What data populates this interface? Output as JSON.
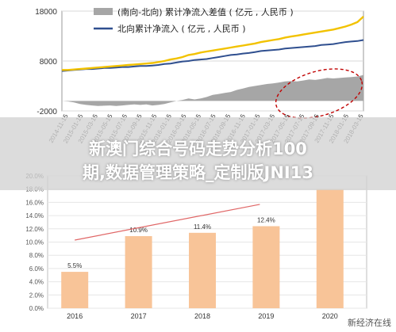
{
  "overlay": {
    "line1": "新澳门综合号码走势分析100",
    "line2": "期,数据管理策略_定制版JNI13"
  },
  "watermark": "新经济在线",
  "colors": {
    "gap_area": "#a6a6a6",
    "cumulative_line": "#2f4f8f",
    "yellow_line": "#f2c200",
    "bar_fill": "#f8c498",
    "trend_line": "#e06666",
    "ellipse": "#c00000"
  },
  "chart_data": [
    {
      "type": "line",
      "legend_position": "top",
      "ylim": [
        -2000,
        18000
      ],
      "yticks": [
        18000,
        8000,
        -2000
      ],
      "x_tick_labels": [
        "2014-11-15",
        "2015-01-15",
        "2015-03-15",
        "2015-05-15",
        "2015-07-15",
        "2015-09-15",
        "2015-11-15",
        "2016-01-15",
        "2016-03-15",
        "2016-05-15",
        "2016-07-15",
        "2016-09-15",
        "2016-11-15",
        "2017-01-15",
        "2017-03-15",
        "2017-05-15",
        "2017-07-15",
        "2017-09-15",
        "2017-11-15",
        "2018-01-15",
        "2018-03-15"
      ],
      "series": [
        {
          "name": "(南向-北向) 累计净流入差值 ( 亿元 , 人民币 )",
          "kind": "area",
          "values": [
            0,
            -100,
            -300,
            -600,
            -800,
            -900,
            -1000,
            -950,
            -900,
            -1000,
            -900,
            -800,
            -700,
            -800,
            -700,
            -900,
            -800,
            -600,
            -300,
            0,
            200,
            500,
            300,
            500,
            800,
            1200,
            1400,
            1600,
            1800,
            2200,
            2500,
            2800,
            3000,
            3200,
            3400,
            3500,
            3700,
            3900,
            4000,
            3900,
            4100,
            4300,
            4200,
            4400,
            4600,
            4500,
            4600,
            4700,
            4800,
            4900,
            5200
          ]
        },
        {
          "name": "北向累计净流入 ( 亿元 , 人民币 )",
          "kind": "line",
          "values": [
            6000,
            6100,
            6200,
            6300,
            6400,
            6400,
            6500,
            6600,
            6600,
            6700,
            6800,
            6800,
            6900,
            7000,
            7000,
            7100,
            7200,
            7400,
            7500,
            7700,
            7900,
            8000,
            8200,
            8300,
            8400,
            8600,
            8800,
            9000,
            9200,
            9300,
            9500,
            9600,
            9800,
            10000,
            10100,
            10200,
            10300,
            10500,
            10600,
            10700,
            10800,
            10900,
            11000,
            11200,
            11300,
            11400,
            11600,
            11800,
            11900,
            12000,
            12200
          ]
        },
        {
          "name": "",
          "kind": "line",
          "values": [
            6200,
            6200,
            6300,
            6400,
            6500,
            6600,
            6700,
            6800,
            6900,
            7000,
            7100,
            7200,
            7300,
            7400,
            7500,
            7600,
            7800,
            8000,
            8300,
            8500,
            8800,
            9200,
            9400,
            9700,
            9900,
            10100,
            10300,
            10500,
            10700,
            10900,
            11100,
            11300,
            11500,
            11800,
            12000,
            12200,
            12400,
            12700,
            12900,
            13100,
            13300,
            13500,
            13700,
            13900,
            14100,
            14300,
            14600,
            14900,
            15300,
            15800,
            16900
          ]
        }
      ]
    },
    {
      "type": "bar",
      "ylim": [
        0,
        20
      ],
      "yticks": [
        "0.0%",
        "2.0%",
        "4.0%",
        "6.0%",
        "8.0%",
        "10.0%",
        "12.0%",
        "14.0%",
        "16.0%",
        "18.0%",
        "20.0%"
      ],
      "categories": [
        "2016",
        "2017",
        "2018",
        "2019",
        "2020"
      ],
      "values": [
        5.5,
        10.9,
        11.4,
        12.4,
        18.0
      ],
      "labels": [
        "5.5%",
        "10.9%",
        "11.4%",
        "12.4%",
        ""
      ]
    }
  ]
}
